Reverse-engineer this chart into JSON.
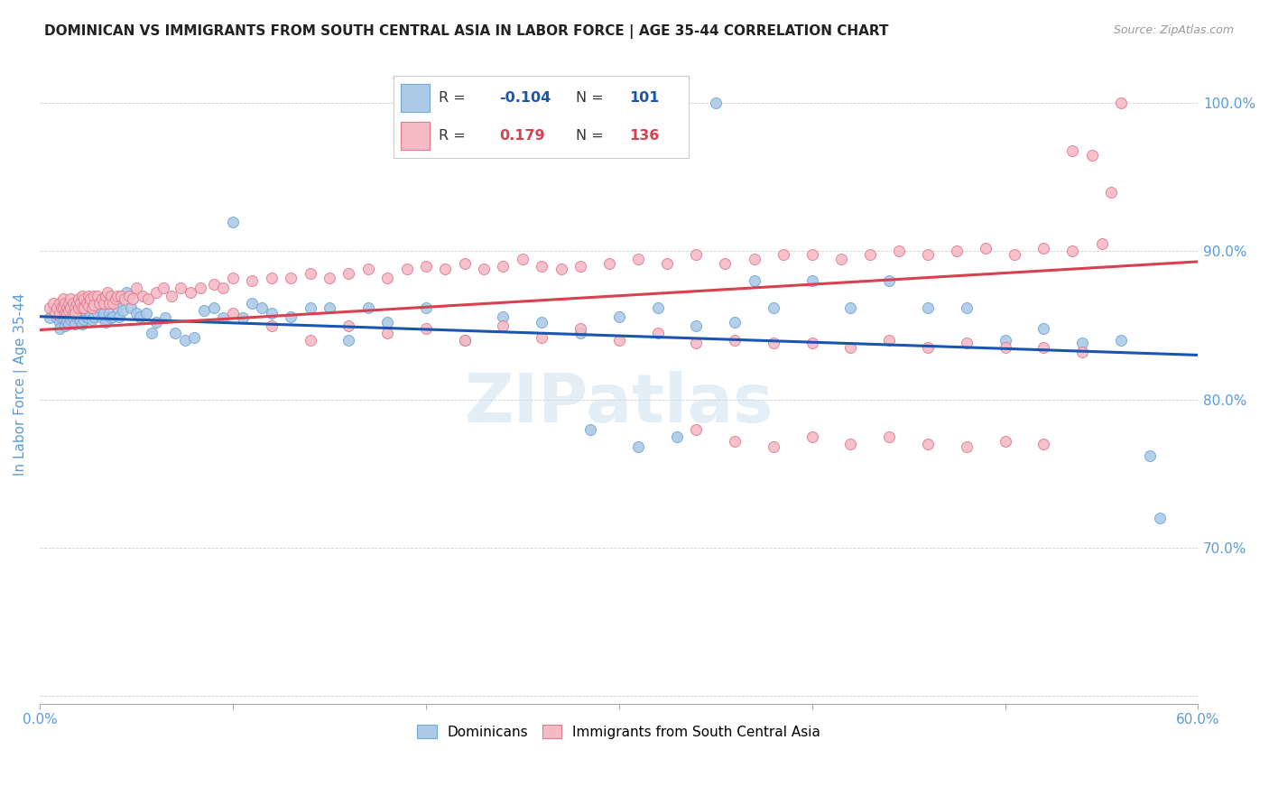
{
  "title": "DOMINICAN VS IMMIGRANTS FROM SOUTH CENTRAL ASIA IN LABOR FORCE | AGE 35-44 CORRELATION CHART",
  "source": "Source: ZipAtlas.com",
  "ylabel": "In Labor Force | Age 35-44",
  "xmin": 0.0,
  "xmax": 0.6,
  "ymin": 0.595,
  "ymax": 1.025,
  "blue_R": -0.104,
  "blue_N": 101,
  "pink_R": 0.179,
  "pink_N": 136,
  "blue_color": "#adc9e8",
  "blue_edge": "#6fa8d4",
  "pink_color": "#f5bbc5",
  "pink_edge": "#e07a90",
  "blue_line_color": "#1a56b0",
  "pink_line_color": "#d94050",
  "watermark": "ZIPatlas",
  "title_fontsize": 11,
  "axis_label_color": "#5b9bd5",
  "blue_line_y0": 0.856,
  "blue_line_y1": 0.83,
  "pink_line_y0": 0.847,
  "pink_line_y1": 0.893,
  "blue_points_x": [
    0.005,
    0.007,
    0.009,
    0.01,
    0.01,
    0.01,
    0.011,
    0.012,
    0.012,
    0.013,
    0.013,
    0.014,
    0.014,
    0.015,
    0.015,
    0.015,
    0.016,
    0.016,
    0.017,
    0.017,
    0.018,
    0.018,
    0.019,
    0.02,
    0.02,
    0.021,
    0.021,
    0.022,
    0.022,
    0.023,
    0.023,
    0.024,
    0.025,
    0.025,
    0.026,
    0.027,
    0.028,
    0.028,
    0.03,
    0.031,
    0.032,
    0.033,
    0.034,
    0.035,
    0.036,
    0.037,
    0.038,
    0.04,
    0.041,
    0.043,
    0.045,
    0.047,
    0.05,
    0.052,
    0.055,
    0.058,
    0.06,
    0.065,
    0.07,
    0.075,
    0.08,
    0.085,
    0.09,
    0.095,
    0.1,
    0.105,
    0.11,
    0.115,
    0.12,
    0.13,
    0.14,
    0.15,
    0.16,
    0.17,
    0.18,
    0.2,
    0.22,
    0.24,
    0.26,
    0.28,
    0.3,
    0.32,
    0.34,
    0.36,
    0.38,
    0.4,
    0.42,
    0.44,
    0.46,
    0.48,
    0.5,
    0.52,
    0.54,
    0.56,
    0.575,
    0.285,
    0.31,
    0.33,
    0.35,
    0.37,
    0.58
  ],
  "blue_points_y": [
    0.855,
    0.86,
    0.855,
    0.857,
    0.852,
    0.848,
    0.855,
    0.862,
    0.856,
    0.858,
    0.85,
    0.856,
    0.853,
    0.862,
    0.857,
    0.851,
    0.858,
    0.854,
    0.862,
    0.855,
    0.858,
    0.851,
    0.855,
    0.864,
    0.856,
    0.86,
    0.853,
    0.858,
    0.851,
    0.862,
    0.854,
    0.856,
    0.862,
    0.855,
    0.858,
    0.854,
    0.862,
    0.856,
    0.858,
    0.862,
    0.855,
    0.858,
    0.852,
    0.868,
    0.858,
    0.855,
    0.856,
    0.862,
    0.856,
    0.86,
    0.872,
    0.862,
    0.858,
    0.856,
    0.858,
    0.845,
    0.852,
    0.855,
    0.845,
    0.84,
    0.842,
    0.86,
    0.862,
    0.855,
    0.92,
    0.855,
    0.865,
    0.862,
    0.858,
    0.856,
    0.862,
    0.862,
    0.84,
    0.862,
    0.852,
    0.862,
    0.84,
    0.856,
    0.852,
    0.845,
    0.856,
    0.862,
    0.85,
    0.852,
    0.862,
    0.88,
    0.862,
    0.88,
    0.862,
    0.862,
    0.84,
    0.848,
    0.838,
    0.84,
    0.762,
    0.78,
    0.768,
    0.775,
    1.0,
    0.88,
    0.72
  ],
  "pink_points_x": [
    0.005,
    0.007,
    0.008,
    0.009,
    0.01,
    0.01,
    0.011,
    0.012,
    0.012,
    0.013,
    0.013,
    0.014,
    0.014,
    0.015,
    0.015,
    0.016,
    0.016,
    0.017,
    0.017,
    0.018,
    0.018,
    0.019,
    0.02,
    0.02,
    0.021,
    0.022,
    0.022,
    0.023,
    0.023,
    0.024,
    0.025,
    0.025,
    0.026,
    0.027,
    0.028,
    0.028,
    0.03,
    0.031,
    0.032,
    0.033,
    0.034,
    0.035,
    0.036,
    0.037,
    0.038,
    0.039,
    0.04,
    0.042,
    0.044,
    0.046,
    0.048,
    0.05,
    0.053,
    0.056,
    0.06,
    0.064,
    0.068,
    0.073,
    0.078,
    0.083,
    0.09,
    0.095,
    0.1,
    0.11,
    0.12,
    0.13,
    0.14,
    0.15,
    0.16,
    0.17,
    0.18,
    0.19,
    0.2,
    0.21,
    0.22,
    0.23,
    0.24,
    0.25,
    0.26,
    0.27,
    0.28,
    0.295,
    0.31,
    0.325,
    0.34,
    0.355,
    0.37,
    0.385,
    0.4,
    0.415,
    0.43,
    0.445,
    0.46,
    0.475,
    0.49,
    0.505,
    0.52,
    0.535,
    0.55,
    0.56,
    0.1,
    0.12,
    0.14,
    0.16,
    0.18,
    0.2,
    0.22,
    0.24,
    0.26,
    0.28,
    0.3,
    0.32,
    0.34,
    0.36,
    0.38,
    0.4,
    0.42,
    0.44,
    0.46,
    0.48,
    0.5,
    0.52,
    0.54,
    0.34,
    0.36,
    0.38,
    0.4,
    0.42,
    0.44,
    0.46,
    0.48,
    0.5,
    0.52,
    0.535,
    0.545,
    0.555
  ],
  "pink_points_y": [
    0.862,
    0.865,
    0.858,
    0.862,
    0.865,
    0.858,
    0.862,
    0.868,
    0.862,
    0.865,
    0.858,
    0.862,
    0.858,
    0.865,
    0.86,
    0.868,
    0.862,
    0.865,
    0.858,
    0.862,
    0.858,
    0.865,
    0.868,
    0.862,
    0.865,
    0.87,
    0.862,
    0.868,
    0.862,
    0.865,
    0.87,
    0.863,
    0.868,
    0.862,
    0.87,
    0.864,
    0.87,
    0.865,
    0.868,
    0.865,
    0.87,
    0.872,
    0.865,
    0.87,
    0.865,
    0.868,
    0.87,
    0.87,
    0.868,
    0.87,
    0.868,
    0.875,
    0.87,
    0.868,
    0.872,
    0.875,
    0.87,
    0.875,
    0.872,
    0.875,
    0.878,
    0.875,
    0.882,
    0.88,
    0.882,
    0.882,
    0.885,
    0.882,
    0.885,
    0.888,
    0.882,
    0.888,
    0.89,
    0.888,
    0.892,
    0.888,
    0.89,
    0.895,
    0.89,
    0.888,
    0.89,
    0.892,
    0.895,
    0.892,
    0.898,
    0.892,
    0.895,
    0.898,
    0.898,
    0.895,
    0.898,
    0.9,
    0.898,
    0.9,
    0.902,
    0.898,
    0.902,
    0.9,
    0.905,
    1.0,
    0.858,
    0.85,
    0.84,
    0.85,
    0.845,
    0.848,
    0.84,
    0.85,
    0.842,
    0.848,
    0.84,
    0.845,
    0.838,
    0.84,
    0.838,
    0.838,
    0.835,
    0.84,
    0.835,
    0.838,
    0.835,
    0.835,
    0.832,
    0.78,
    0.772,
    0.768,
    0.775,
    0.77,
    0.775,
    0.77,
    0.768,
    0.772,
    0.77,
    0.968,
    0.965,
    0.94
  ]
}
